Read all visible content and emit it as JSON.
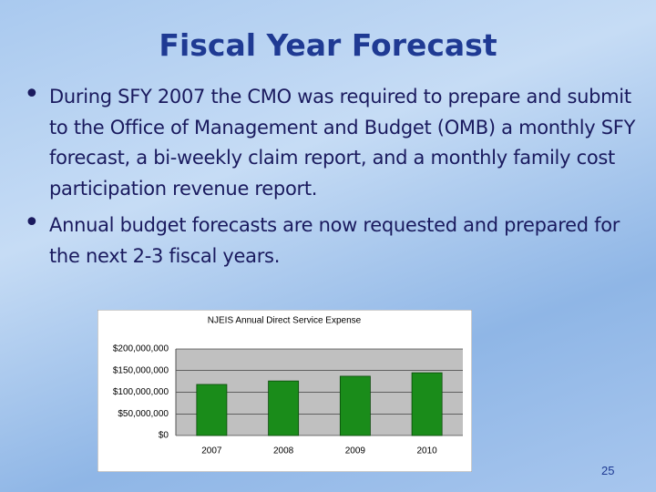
{
  "slide": {
    "title": "Fiscal Year Forecast",
    "bullets": [
      "During SFY 2007 the CMO was required to prepare and submit to the Office of Management and Budget (OMB) a monthly SFY forecast, a bi-weekly claim report, and a monthly family cost participation revenue report.",
      "Annual budget forecasts are now requested and prepared for the next 2-3 fiscal years."
    ],
    "page_number": "25"
  },
  "chart_data": {
    "type": "bar",
    "title": "NJEIS Annual Direct Service Expense",
    "categories": [
      "2007",
      "2008",
      "2009",
      "2010"
    ],
    "values": [
      118000000,
      126000000,
      137000000,
      145000000
    ],
    "color": "#1a8c1a",
    "ylim": [
      0,
      200000000
    ],
    "yticks": [
      {
        "value": 0,
        "label": "$0"
      },
      {
        "value": 50000000,
        "label": "$50,000,000"
      },
      {
        "value": 100000000,
        "label": "$100,000,000"
      },
      {
        "value": 150000000,
        "label": "$150,000,000"
      },
      {
        "value": 200000000,
        "label": "$200,000,000"
      }
    ],
    "grid": true
  }
}
